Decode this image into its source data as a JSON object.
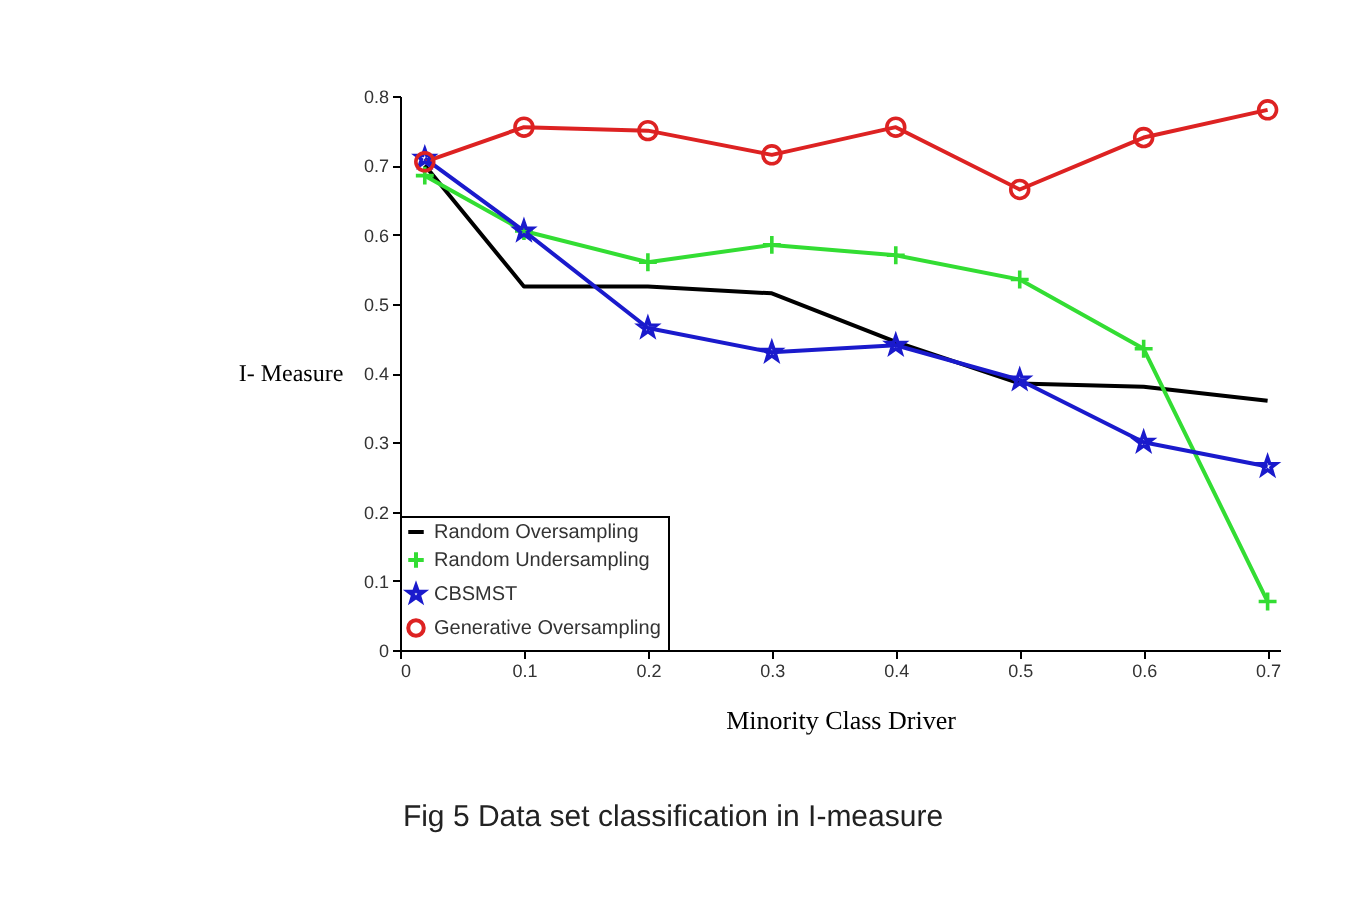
{
  "chart_data": {
    "type": "line",
    "x": [
      0.02,
      0.1,
      0.2,
      0.3,
      0.4,
      0.5,
      0.6,
      0.7
    ],
    "series": [
      {
        "name": "Random Oversampling",
        "color": "#000000",
        "marker": "none",
        "values": [
          0.7,
          0.525,
          0.525,
          0.515,
          0.445,
          0.385,
          0.38,
          0.36
        ]
      },
      {
        "name": "Random Undersampling",
        "color": "#33dd33",
        "marker": "cross",
        "values": [
          0.685,
          0.605,
          0.56,
          0.585,
          0.57,
          0.535,
          0.435,
          0.07
        ]
      },
      {
        "name": "CBSMST",
        "color": "#1a1acc",
        "marker": "star",
        "values": [
          0.71,
          0.605,
          0.465,
          0.43,
          0.44,
          0.39,
          0.3,
          0.265
        ]
      },
      {
        "name": "Generative Oversampling",
        "color": "#dd2222",
        "marker": "circle",
        "values": [
          0.705,
          0.755,
          0.75,
          0.715,
          0.755,
          0.665,
          0.74,
          0.78
        ]
      }
    ],
    "xlabel": "Minority Class Driver",
    "ylabel": "I- Measure",
    "xlim": [
      0,
      0.71
    ],
    "xticks": [
      0,
      0.1,
      0.2,
      0.3,
      0.4,
      0.5,
      0.6,
      0.7
    ],
    "ylim": [
      0,
      0.8
    ],
    "yticks": [
      0,
      0.1,
      0.2,
      0.3,
      0.4,
      0.5,
      0.6,
      0.7,
      0.8
    ],
    "grid": false,
    "legend": "bottom left",
    "annotations": [
      "Fig 5 Data set classification in I-measure"
    ]
  }
}
